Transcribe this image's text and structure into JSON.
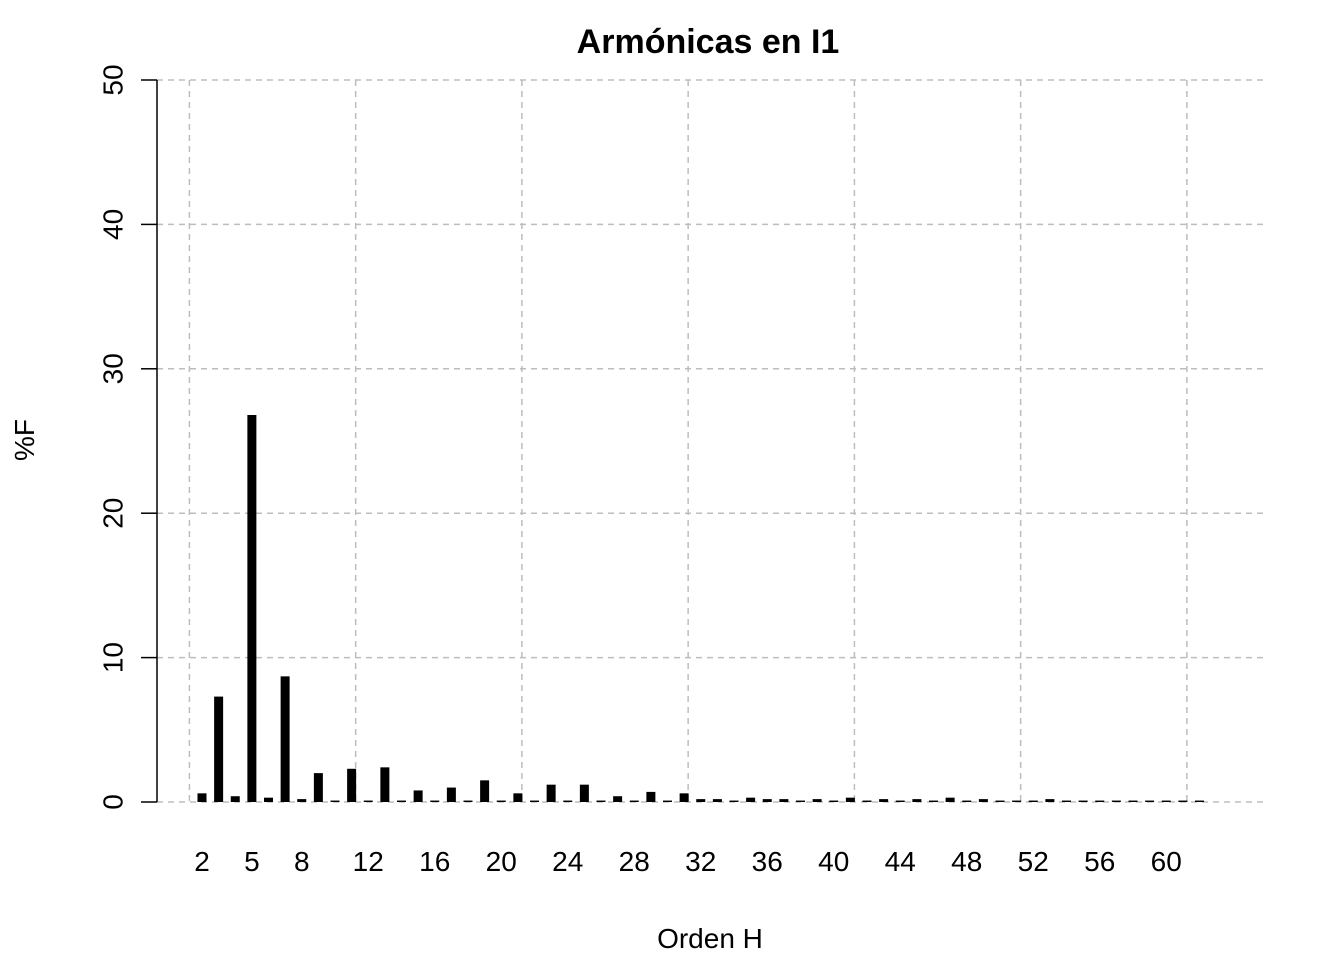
{
  "chart_data": {
    "type": "bar",
    "title": "Armónicas en I1",
    "xlabel": "Orden H",
    "ylabel": "%F",
    "ylim": [
      0,
      50
    ],
    "yticks": [
      "0",
      "10",
      "20",
      "30",
      "40",
      "50"
    ],
    "xtick_labels": [
      "2",
      "5",
      "8",
      "12",
      "16",
      "20",
      "24",
      "28",
      "32",
      "36",
      "40",
      "44",
      "48",
      "52",
      "56",
      "60"
    ],
    "xtick_orders": [
      2,
      5,
      8,
      12,
      16,
      20,
      24,
      28,
      32,
      36,
      40,
      44,
      48,
      52,
      56,
      60
    ],
    "grid": true,
    "categories": [
      2,
      3,
      4,
      5,
      6,
      7,
      8,
      9,
      10,
      11,
      12,
      13,
      14,
      15,
      16,
      17,
      18,
      19,
      20,
      21,
      22,
      23,
      24,
      25,
      26,
      27,
      28,
      29,
      30,
      31,
      32,
      33,
      34,
      35,
      36,
      37,
      38,
      39,
      40,
      41,
      42,
      43,
      44,
      45,
      46,
      47,
      48,
      49,
      50,
      51,
      52,
      53,
      54,
      55,
      56,
      57,
      58,
      59,
      60,
      61,
      62
    ],
    "values": [
      0.6,
      7.3,
      0.4,
      26.8,
      0.3,
      8.7,
      0.2,
      2.0,
      0.1,
      2.3,
      0.1,
      2.4,
      0.1,
      0.8,
      0.1,
      1.0,
      0.1,
      1.5,
      0.1,
      0.6,
      0.1,
      1.2,
      0.1,
      1.2,
      0.1,
      0.4,
      0.1,
      0.7,
      0.1,
      0.6,
      0.2,
      0.2,
      0.1,
      0.3,
      0.2,
      0.2,
      0.1,
      0.2,
      0.1,
      0.3,
      0.1,
      0.2,
      0.1,
      0.2,
      0.1,
      0.3,
      0.1,
      0.2,
      0.1,
      0.1,
      0.1,
      0.2,
      0.1,
      0.1,
      0.1,
      0.1,
      0.1,
      0.1,
      0.1,
      0.1,
      0.1
    ],
    "colors": {
      "bar": "#000000",
      "grid": "#bdbdbd",
      "axis": "#000000"
    }
  }
}
